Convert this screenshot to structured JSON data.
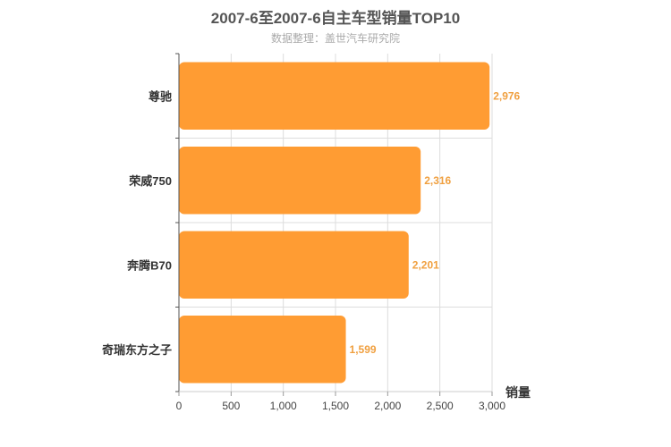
{
  "chart_data": {
    "type": "bar",
    "orientation": "horizontal",
    "title": "2007-6至2007-6自主车型销量TOP10",
    "subtitle": "数据整理：盖世汽车研究院",
    "xlabel": "销量",
    "ylabel": "",
    "categories": [
      "尊驰",
      "荣威750",
      "奔腾B70",
      "奇瑞东方之子"
    ],
    "values": [
      2976,
      2316,
      2201,
      1599
    ],
    "data_labels": [
      "2,976",
      "2,316",
      "2,201",
      "1,599"
    ],
    "xlim": [
      0,
      3000
    ],
    "x_ticks": [
      0,
      500,
      1000,
      1500,
      2000,
      2500,
      3000
    ],
    "x_tick_labels": [
      "0",
      "500",
      "1,000",
      "1,500",
      "2,000",
      "2,500",
      "3,000"
    ],
    "grid": true,
    "colors": {
      "bar": "#FF9C33",
      "label": "#F0A040",
      "grid": "#dddddd",
      "axis": "#555555"
    }
  }
}
